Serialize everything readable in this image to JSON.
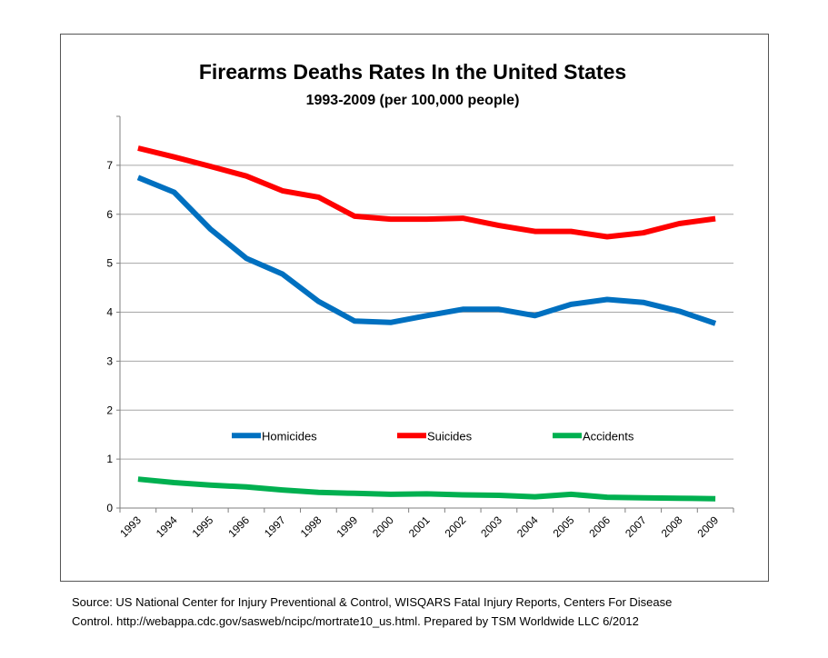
{
  "chart_data": {
    "type": "line",
    "title": "Firearms Deaths Rates In the United States",
    "subtitle": "1993-2009 (per 100,000 people)",
    "xlabel": "",
    "ylabel": "",
    "categories": [
      "1993",
      "1994",
      "1995",
      "1996",
      "1997",
      "1998",
      "1999",
      "2000",
      "2001",
      "2002",
      "2003",
      "2004",
      "2005",
      "2006",
      "2007",
      "2008",
      "2009"
    ],
    "ylim": [
      0,
      8
    ],
    "yticks": [
      0,
      1,
      2,
      3,
      4,
      5,
      6,
      7
    ],
    "grid": true,
    "legend_position": "inside-middle",
    "series": [
      {
        "name": "Homicides",
        "color": "#0070C0",
        "values": [
          6.75,
          6.45,
          5.7,
          5.1,
          4.78,
          4.22,
          3.82,
          3.79,
          3.93,
          4.06,
          4.06,
          3.93,
          4.16,
          4.26,
          4.2,
          4.02,
          3.77
        ]
      },
      {
        "name": "Suicides",
        "color": "#FF0000",
        "values": [
          7.35,
          7.17,
          6.98,
          6.78,
          6.48,
          6.35,
          5.96,
          5.9,
          5.9,
          5.92,
          5.77,
          5.65,
          5.65,
          5.54,
          5.62,
          5.81,
          5.91
        ]
      },
      {
        "name": "Accidents",
        "color": "#00B050",
        "values": [
          0.59,
          0.52,
          0.47,
          0.43,
          0.37,
          0.32,
          0.3,
          0.28,
          0.29,
          0.27,
          0.26,
          0.23,
          0.28,
          0.22,
          0.21,
          0.2,
          0.19
        ]
      }
    ]
  },
  "source": {
    "line1": "Source: US National Center for Injury Preventional & Control, WISQARS Fatal Injury Reports, Centers For Disease",
    "line2": "Control.  http://webappa.cdc.gov/sasweb/ncipc/mortrate10_us.html.   Prepared by TSM Worldwide LLC   6/2012"
  }
}
